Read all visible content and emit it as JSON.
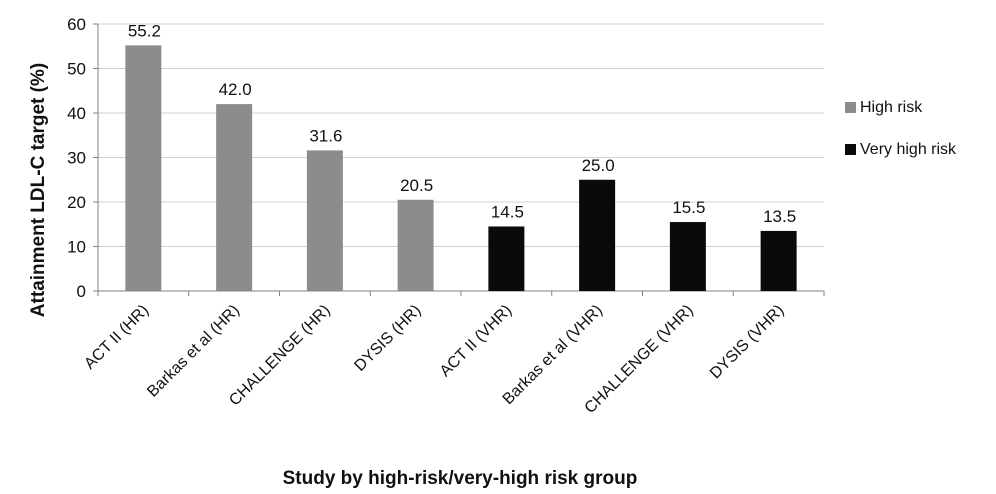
{
  "chart_data": {
    "type": "bar",
    "categories": [
      "ACT II (HR)",
      "Barkas et al (HR)",
      "CHALLENGE (HR)",
      "DYSIS (HR)",
      "ACT II (VHR)",
      "Barkas et al (VHR)",
      "CHALLENGE (VHR)",
      "DYSIS (VHR)"
    ],
    "values": [
      55.2,
      42.0,
      31.6,
      20.5,
      14.5,
      25.0,
      15.5,
      13.5
    ],
    "value_labels": [
      "55.2",
      "42.0",
      "31.6",
      "20.5",
      "14.5",
      "25.0",
      "15.5",
      "13.5"
    ],
    "groups": [
      "High risk",
      "High risk",
      "High risk",
      "High risk",
      "Very high risk",
      "Very high risk",
      "Very high risk",
      "Very high risk"
    ],
    "series": [
      {
        "name": "High risk",
        "color": "#8c8c8c"
      },
      {
        "name": "Very high risk",
        "color": "#0a0a0a"
      }
    ],
    "xlabel": "Study by high-risk/very-high risk group",
    "ylabel": "Attainment LDL-C target (%)",
    "ylim": [
      0,
      60
    ],
    "yticks": [
      0,
      10,
      20,
      30,
      40,
      50,
      60
    ],
    "grid": true,
    "legend_position": "right"
  }
}
